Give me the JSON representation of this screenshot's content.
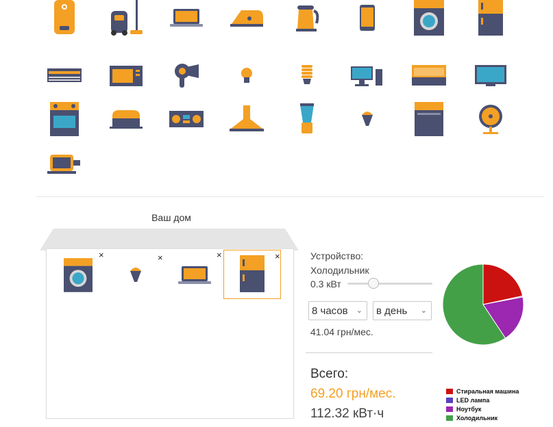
{
  "catalog": [
    {
      "name": "water-heater"
    },
    {
      "name": "vacuum-cleaner"
    },
    {
      "name": "laptop"
    },
    {
      "name": "iron"
    },
    {
      "name": "kettle"
    },
    {
      "name": "smartphone"
    },
    {
      "name": "washing-machine"
    },
    {
      "name": "refrigerator"
    },
    {
      "name": "air-conditioner"
    },
    {
      "name": "microwave"
    },
    {
      "name": "hair-dryer"
    },
    {
      "name": "light-bulb"
    },
    {
      "name": "energy-saving-bulb"
    },
    {
      "name": "desktop-computer"
    },
    {
      "name": "heater"
    },
    {
      "name": "tv"
    },
    {
      "name": "electric-stove"
    },
    {
      "name": "toaster"
    },
    {
      "name": "stereo"
    },
    {
      "name": "range-hood"
    },
    {
      "name": "blender"
    },
    {
      "name": "led-bulb"
    },
    {
      "name": "dishwasher"
    },
    {
      "name": "fan"
    },
    {
      "name": "electric-motor"
    }
  ],
  "house": {
    "title": "Ваш дом",
    "remove_symbol": "×",
    "devices": [
      "washing-machine",
      "led-bulb",
      "laptop",
      "refrigerator"
    ],
    "selected_index": 3
  },
  "device_panel": {
    "label": "Устройство:",
    "name": "Холодильник",
    "power": "0.3 кВт",
    "power_fraction": 0.28,
    "hours_select": "8 часов",
    "period_select": "в день",
    "cost": "41.04 грн/мес."
  },
  "totals": {
    "label": "Всего:",
    "cost": "69.20 грн/мес.",
    "energy": "112.32 кВт·ч"
  },
  "chart_data": {
    "type": "pie",
    "slices": [
      {
        "label": "Стиральная машина",
        "value": 21.6,
        "color": "#cc1111"
      },
      {
        "label": "LED лампа",
        "value": 0.4,
        "color": "#5a3fc0"
      },
      {
        "label": "Ноутбук",
        "value": 18.7,
        "color": "#9c27b0"
      },
      {
        "label": "Холодильник",
        "value": 59.3,
        "color": "#43a047"
      }
    ],
    "legend_position": "bottom-right"
  }
}
